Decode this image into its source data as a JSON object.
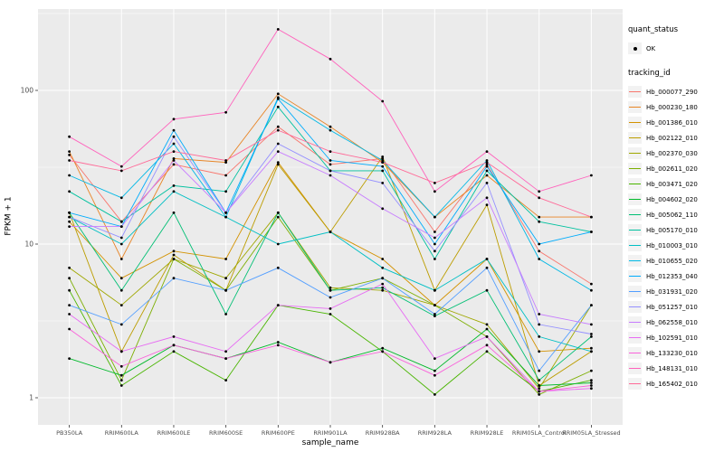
{
  "chart_data": {
    "type": "line",
    "title": "",
    "xlabel": "sample_name",
    "ylabel": "FPKM + 1",
    "yscale": "log10",
    "ylim": [
      0.67,
      340
    ],
    "yticks": [
      1,
      10,
      100
    ],
    "ytick_labels": [
      "1",
      "10",
      "100"
    ],
    "grid": true,
    "panel_bg": "#EBEBEB",
    "grid_color": "#FFFFFF",
    "point_color": "#000000",
    "legend_position": "right",
    "categories": [
      "PB350LA",
      "RRIM600LA",
      "RRIM600LE",
      "RRIM600SE",
      "RRIM600PE",
      "RRIM901LA",
      "RRIM928BA",
      "RRIM928LA",
      "RRIM928LE",
      "RRIM05LA_Control",
      "RRIM05LA_Stressed"
    ],
    "legend": {
      "quant_status_title": "quant_status",
      "quant_status_items": [
        "OK"
      ],
      "tracking_id_title": "tracking_id"
    },
    "series": [
      {
        "name": "Hb_000077_290",
        "color": "#F8766D",
        "values": [
          38,
          14,
          33,
          28,
          58,
          33,
          36,
          12,
          33,
          9,
          5.5
        ]
      },
      {
        "name": "Hb_000230_180",
        "color": "#E88526",
        "values": [
          40,
          8,
          36,
          34,
          95,
          58,
          34,
          15,
          28,
          15,
          15
        ]
      },
      {
        "name": "Hb_001386_010",
        "color": "#D39200",
        "values": [
          14,
          6,
          9,
          8,
          34,
          12,
          8,
          4,
          8,
          2,
          2.1
        ]
      },
      {
        "name": "Hb_002122_010",
        "color": "#BC9D00",
        "values": [
          16,
          2,
          8.5,
          5,
          33,
          12,
          37,
          5,
          18,
          1.2,
          2
        ]
      },
      {
        "name": "Hb_002370_030",
        "color": "#9FA700",
        "values": [
          7,
          4,
          8,
          6,
          16,
          5.2,
          5,
          4,
          3,
          1.15,
          4
        ]
      },
      {
        "name": "Hb_002611_020",
        "color": "#7CAE00",
        "values": [
          6,
          1.3,
          8,
          5,
          15,
          5,
          6,
          4,
          2.5,
          1.05,
          1.5
        ]
      },
      {
        "name": "Hb_003471_020",
        "color": "#49B500",
        "values": [
          5,
          1.2,
          2,
          1.3,
          4,
          3.5,
          2,
          1.05,
          2,
          1.1,
          1.3
        ]
      },
      {
        "name": "Hb_004602_020",
        "color": "#00B92A",
        "values": [
          1.8,
          1.4,
          2.2,
          1.8,
          2.3,
          1.7,
          2.1,
          1.5,
          2.8,
          1.2,
          1.25
        ]
      },
      {
        "name": "Hb_005062_110",
        "color": "#00BF74",
        "values": [
          16,
          5,
          16,
          3.5,
          16,
          5,
          5.2,
          3.4,
          5,
          1.3,
          2.5
        ]
      },
      {
        "name": "Hb_005170_010",
        "color": "#00C19F",
        "values": [
          22,
          14,
          24,
          22,
          78,
          30,
          30,
          8,
          30,
          14,
          12
        ]
      },
      {
        "name": "Hb_010003_010",
        "color": "#00BFC4",
        "values": [
          15,
          10,
          22,
          15,
          10,
          12,
          7,
          5,
          8,
          2.5,
          2
        ]
      },
      {
        "name": "Hb_010655_020",
        "color": "#00B8E5",
        "values": [
          28,
          20,
          45,
          15,
          90,
          55,
          35,
          15,
          35,
          8,
          5
        ]
      },
      {
        "name": "Hb_012353_040",
        "color": "#00ACFC",
        "values": [
          16,
          13,
          55,
          16,
          88,
          35,
          32,
          10,
          32,
          10,
          12
        ]
      },
      {
        "name": "Hb_031931_020",
        "color": "#529EFF",
        "values": [
          4,
          3,
          6,
          5,
          7,
          4.5,
          6,
          3.5,
          7,
          1.5,
          4
        ]
      },
      {
        "name": "Hb_051257_010",
        "color": "#9590FF",
        "values": [
          15,
          11,
          50,
          16,
          45,
          30,
          25,
          9,
          25,
          3,
          2.6
        ]
      },
      {
        "name": "Hb_062558_010",
        "color": "#C77CFF",
        "values": [
          13,
          13,
          35,
          16,
          40,
          28,
          17,
          11,
          20,
          3.5,
          3
        ]
      },
      {
        "name": "Hb_102591_010",
        "color": "#E76BF3",
        "values": [
          3.5,
          2,
          2.5,
          2,
          4,
          3.8,
          5.5,
          1.8,
          2.5,
          1.1,
          1.15
        ]
      },
      {
        "name": "Hb_133230_010",
        "color": "#FA62DB",
        "values": [
          2.8,
          1.6,
          2.2,
          1.8,
          2.2,
          1.7,
          2.0,
          1.4,
          2.2,
          1.1,
          1.2
        ]
      },
      {
        "name": "Hb_148131_010",
        "color": "#FF62BC",
        "values": [
          50,
          32,
          65,
          72,
          250,
          160,
          85,
          22,
          40,
          22,
          28
        ]
      },
      {
        "name": "Hb_165402_010",
        "color": "#FF6A98",
        "values": [
          35,
          30,
          40,
          35,
          55,
          40,
          34,
          25,
          34,
          20,
          15
        ]
      }
    ]
  }
}
